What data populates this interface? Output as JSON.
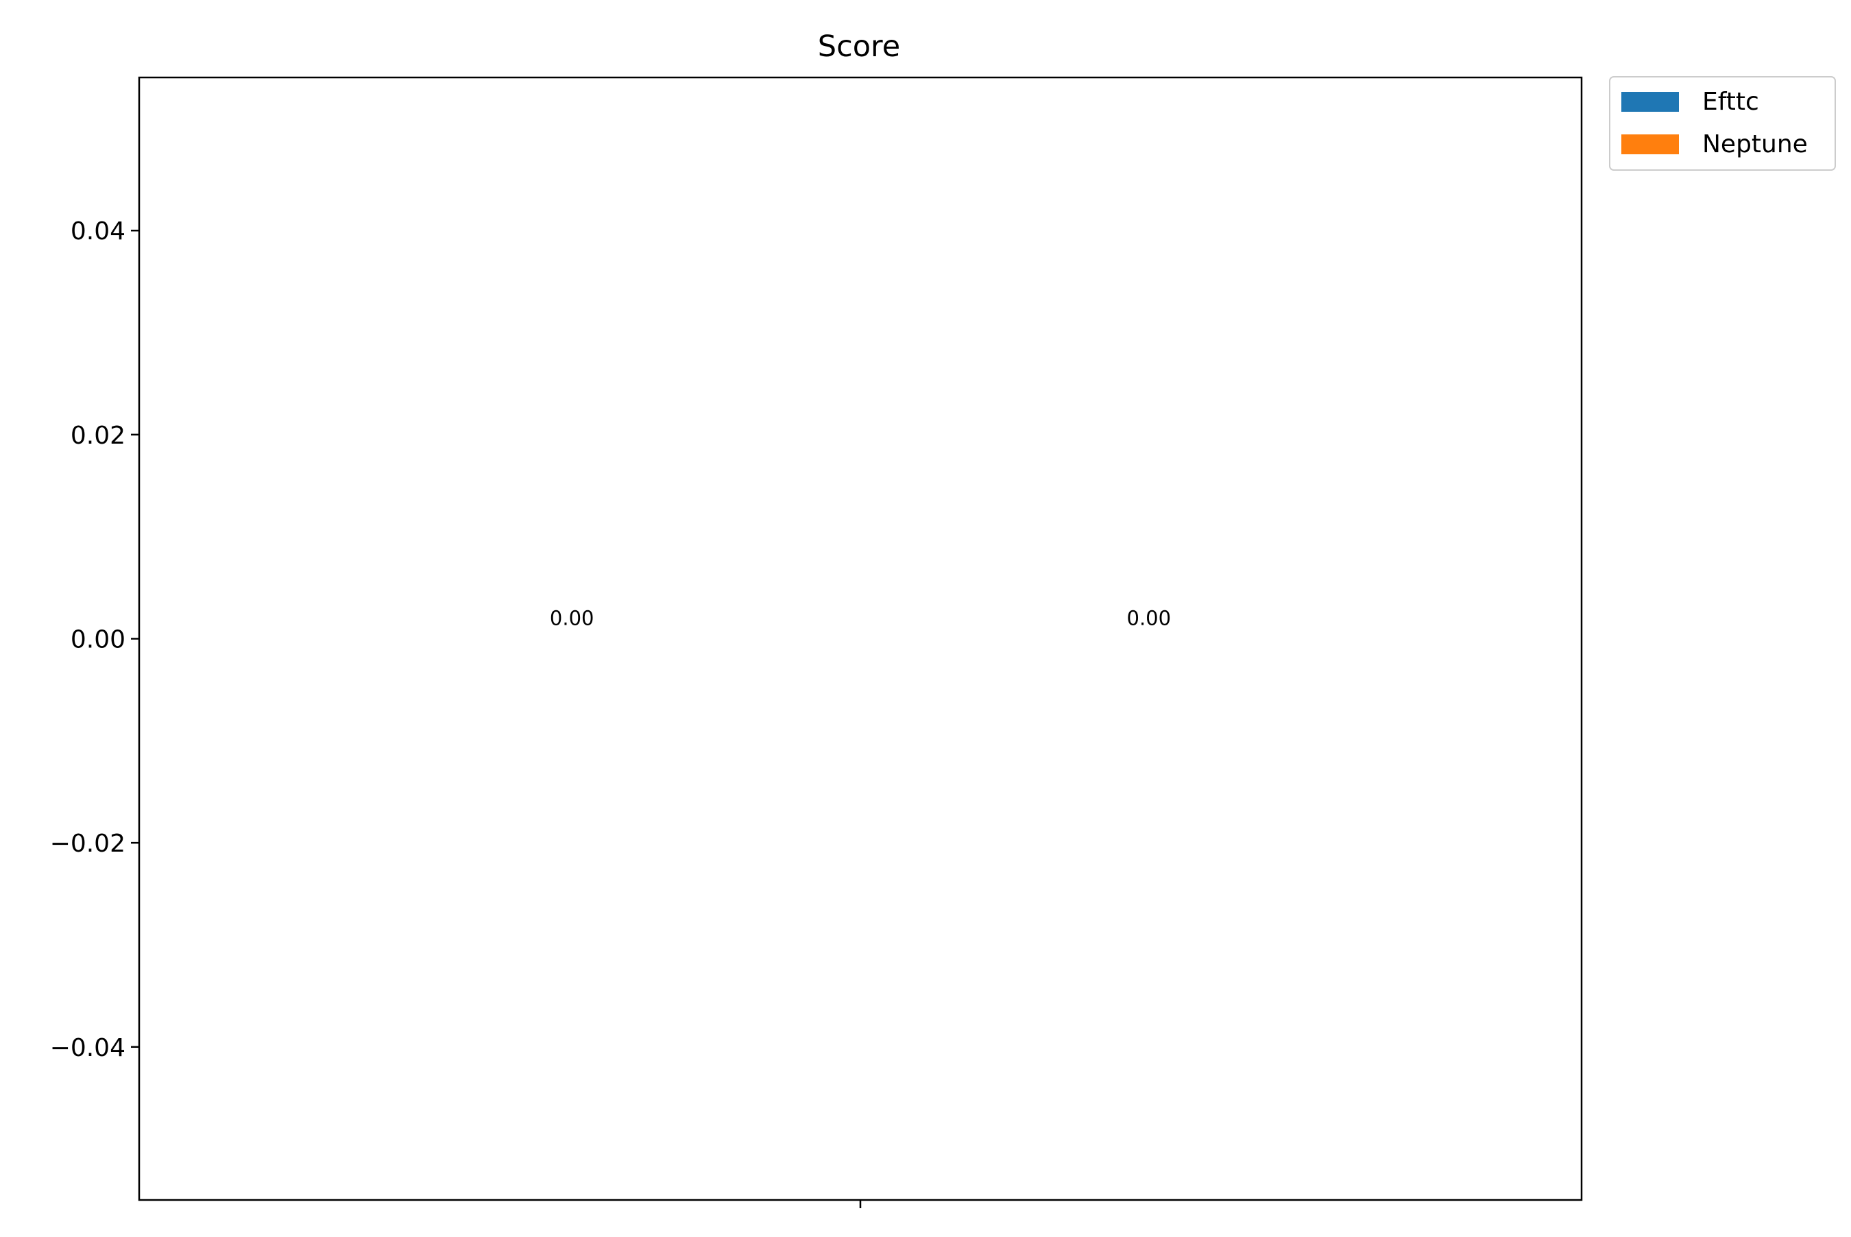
{
  "chart_data": {
    "type": "bar",
    "title": "Score",
    "xlabel": "",
    "ylabel": "",
    "categories": [
      ""
    ],
    "series": [
      {
        "name": "Efttc",
        "values": [
          0.0
        ],
        "value_labels": [
          "0.00"
        ]
      },
      {
        "name": "Neptune",
        "values": [
          0.0
        ],
        "value_labels": [
          "0.00"
        ]
      }
    ],
    "ylim": [
      -0.055,
      0.055
    ],
    "yticks": [
      -0.04,
      -0.02,
      0.0,
      0.02,
      0.04
    ],
    "ytick_labels": [
      "−0.04",
      "−0.02",
      "0.00",
      "0.02",
      "0.04"
    ],
    "grid": false,
    "legend_position": "outside-top-right",
    "colors": {
      "Efttc": "#1f77b4",
      "Neptune": "#ff7f0e"
    }
  }
}
